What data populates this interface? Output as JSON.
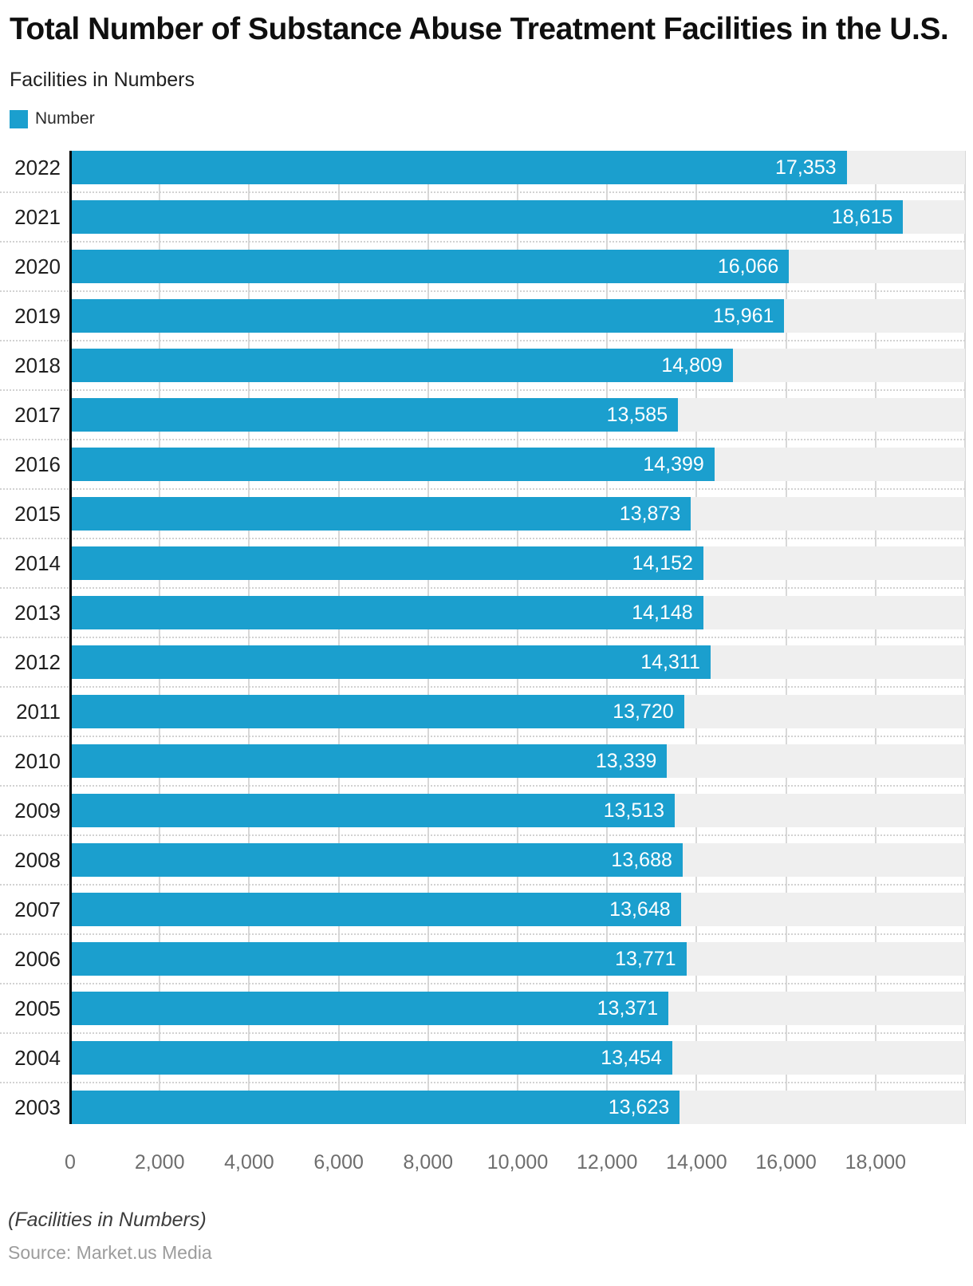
{
  "header": {
    "title": "Total Number of Substance Abuse Treatment Facilities in the U.S.",
    "subtitle": "Facilities in Numbers"
  },
  "legend": {
    "label": "Number",
    "swatch_color": "#1B9FCE"
  },
  "chart_data": {
    "type": "bar",
    "orientation": "horizontal",
    "title": "Total Number of Substance Abuse Treatment Facilities in the U.S.",
    "subtitle": "Facilities in Numbers",
    "series_name": "Number",
    "categories": [
      "2022",
      "2021",
      "2020",
      "2019",
      "2018",
      "2017",
      "2016",
      "2015",
      "2014",
      "2013",
      "2012",
      "2011",
      "2010",
      "2009",
      "2008",
      "2007",
      "2006",
      "2005",
      "2004",
      "2003"
    ],
    "values": [
      17353,
      18615,
      16066,
      15961,
      14809,
      13585,
      14399,
      13873,
      14152,
      14148,
      14311,
      13720,
      13339,
      13513,
      13688,
      13648,
      13771,
      13371,
      13454,
      13623
    ],
    "value_labels": [
      "17,353",
      "18,615",
      "16,066",
      "15,961",
      "14,809",
      "13,585",
      "14,399",
      "13,873",
      "14,152",
      "14,148",
      "14,311",
      "13,720",
      "13,339",
      "13,513",
      "13,688",
      "13,648",
      "13,771",
      "13,371",
      "13,454",
      "13,623"
    ],
    "xlim": [
      0,
      20000
    ],
    "x_ticks": [
      0,
      2000,
      4000,
      6000,
      8000,
      10000,
      12000,
      14000,
      16000,
      18000
    ],
    "x_tick_labels": [
      "0",
      "2,000",
      "4,000",
      "6,000",
      "8,000",
      "10,000",
      "12,000",
      "14,000",
      "16,000",
      "18,000"
    ],
    "grid_ticks": [
      0,
      2000,
      4000,
      6000,
      8000,
      10000,
      12000,
      14000,
      16000,
      18000,
      20000
    ],
    "grid": true,
    "legend_position": "top-left",
    "bar_color": "#1B9FCE",
    "band_color": "#EFEFEF",
    "gridline_color": "#D8D8D8",
    "value_label_color": "#FFFFFF"
  },
  "footer": {
    "note": "(Facilities in Numbers)",
    "source": "Source: Market.us Media"
  }
}
